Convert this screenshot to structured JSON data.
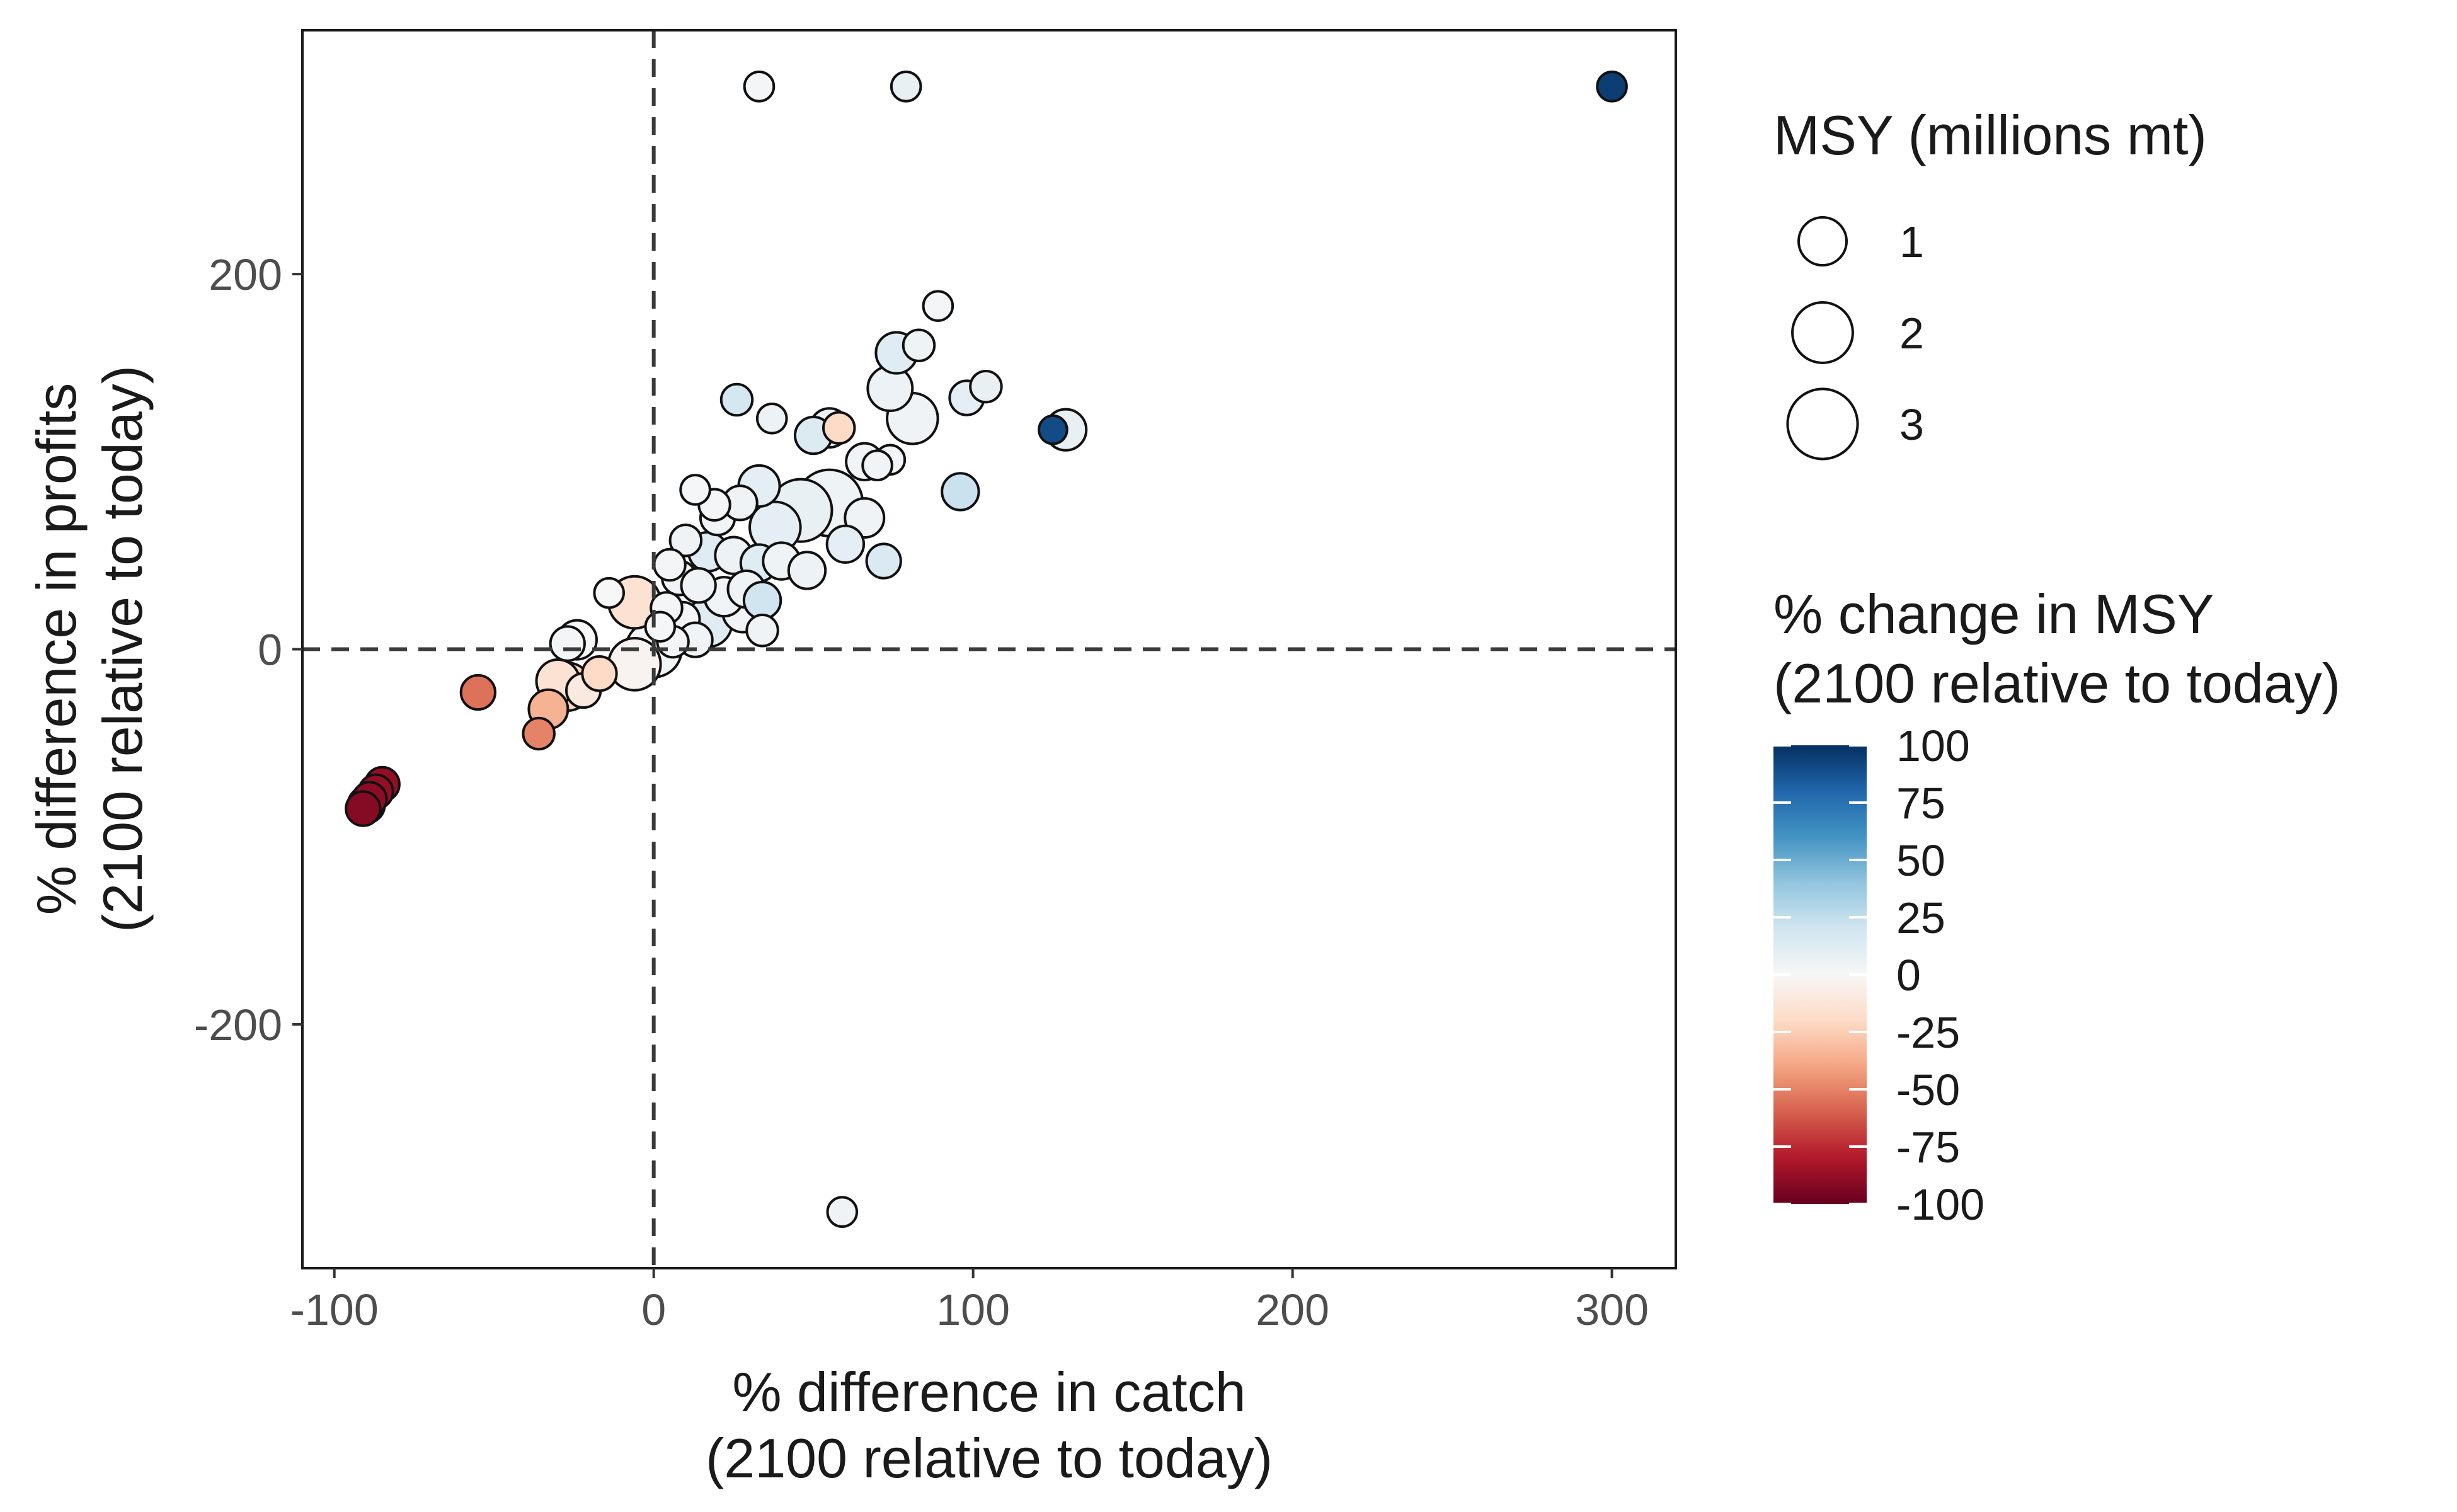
{
  "chart_data": {
    "type": "scatter",
    "xlabel": [
      "% difference in catch",
      "(2100 relative to today)"
    ],
    "ylabel": [
      "% difference in profits",
      "(2100 relative to today)"
    ],
    "xlim": [
      -110,
      320
    ],
    "ylim": [
      -330,
      330
    ],
    "x_ticks": [
      {
        "value": -100,
        "label": "-100"
      },
      {
        "value": 0,
        "label": "0"
      },
      {
        "value": 100,
        "label": "100"
      },
      {
        "value": 200,
        "label": "200"
      },
      {
        "value": 300,
        "label": "300"
      }
    ],
    "y_ticks": [
      {
        "value": -200,
        "label": "-200"
      },
      {
        "value": 0,
        "label": "0"
      },
      {
        "value": 200,
        "label": "200"
      }
    ],
    "grid": false,
    "reference_lines": {
      "x": 0,
      "y": 0,
      "style": "dashed"
    },
    "size_legend": {
      "title": "MSY (millions mt)",
      "entries": [
        {
          "value": 1,
          "label": "1"
        },
        {
          "value": 2,
          "label": "2"
        },
        {
          "value": 3,
          "label": "3"
        }
      ]
    },
    "color_legend": {
      "title": [
        "% change in MSY",
        "(2100 relative to today)"
      ],
      "range": [
        -100,
        100
      ],
      "ticks": [
        {
          "value": 100,
          "label": "100"
        },
        {
          "value": 75,
          "label": "75"
        },
        {
          "value": 50,
          "label": "50"
        },
        {
          "value": 25,
          "label": "25"
        },
        {
          "value": 0,
          "label": "0"
        },
        {
          "value": -25,
          "label": "-25"
        },
        {
          "value": -50,
          "label": "-50"
        },
        {
          "value": -75,
          "label": "-75"
        },
        {
          "value": -100,
          "label": "-100"
        }
      ],
      "palette": [
        "#67001f",
        "#b2182b",
        "#d6604d",
        "#f4a582",
        "#fddbc7",
        "#f7f7f7",
        "#d1e5f0",
        "#92c5de",
        "#4393c3",
        "#2166ac",
        "#053061"
      ]
    },
    "points": [
      {
        "x": 300,
        "y": 300,
        "msy": 0.15,
        "pct": 95
      },
      {
        "x": 33,
        "y": 300,
        "msy": 0.15,
        "pct": 2
      },
      {
        "x": 79,
        "y": 300,
        "msy": 0.15,
        "pct": 8
      },
      {
        "x": 59,
        "y": -300,
        "msy": 0.15,
        "pct": 4
      },
      {
        "x": 89,
        "y": 183,
        "msy": 0.15,
        "pct": 2
      },
      {
        "x": 76,
        "y": 158,
        "msy": 0.6,
        "pct": 12
      },
      {
        "x": 83,
        "y": 162,
        "msy": 0.2,
        "pct": 5
      },
      {
        "x": 74,
        "y": 139,
        "msy": 0.8,
        "pct": 6
      },
      {
        "x": 26,
        "y": 133,
        "msy": 0.2,
        "pct": 18
      },
      {
        "x": 37,
        "y": 123,
        "msy": 0.15,
        "pct": 6
      },
      {
        "x": 98,
        "y": 134,
        "msy": 0.3,
        "pct": 10
      },
      {
        "x": 104,
        "y": 140,
        "msy": 0.2,
        "pct": 8
      },
      {
        "x": 129,
        "y": 117,
        "msy": 0.6,
        "pct": 8
      },
      {
        "x": 125,
        "y": 117,
        "msy": 0.12,
        "pct": 90
      },
      {
        "x": 81,
        "y": 123,
        "msy": 1.2,
        "pct": 4
      },
      {
        "x": 50,
        "y": 114,
        "msy": 0.4,
        "pct": 14
      },
      {
        "x": 55,
        "y": 118,
        "msy": 0.5,
        "pct": 6
      },
      {
        "x": 58,
        "y": 118,
        "msy": 0.2,
        "pct": -20
      },
      {
        "x": 96,
        "y": 84,
        "msy": 0.4,
        "pct": 22
      },
      {
        "x": 66,
        "y": 100,
        "msy": 0.4,
        "pct": 3
      },
      {
        "x": 74,
        "y": 101,
        "msy": 0.15,
        "pct": 2
      },
      {
        "x": 70,
        "y": 98,
        "msy": 0.15,
        "pct": 3
      },
      {
        "x": 33,
        "y": 87,
        "msy": 0.6,
        "pct": 10
      },
      {
        "x": 55,
        "y": 78,
        "msy": 2.6,
        "pct": 5
      },
      {
        "x": 46,
        "y": 74,
        "msy": 2.2,
        "pct": 8
      },
      {
        "x": 38,
        "y": 65,
        "msy": 1.2,
        "pct": 10
      },
      {
        "x": 66,
        "y": 70,
        "msy": 0.5,
        "pct": 4
      },
      {
        "x": 60,
        "y": 56,
        "msy": 0.4,
        "pct": 10
      },
      {
        "x": 72,
        "y": 47,
        "msy": 0.3,
        "pct": 15
      },
      {
        "x": 20,
        "y": 70,
        "msy": 0.3,
        "pct": 3
      },
      {
        "x": 13,
        "y": 85,
        "msy": 0.15,
        "pct": 1
      },
      {
        "x": 19,
        "y": 77,
        "msy": 0.2,
        "pct": 2
      },
      {
        "x": 27,
        "y": 78,
        "msy": 0.3,
        "pct": 4
      },
      {
        "x": 10,
        "y": 58,
        "msy": 0.2,
        "pct": 4
      },
      {
        "x": 17,
        "y": 52,
        "msy": 0.5,
        "pct": 12
      },
      {
        "x": 25,
        "y": 50,
        "msy": 0.4,
        "pct": 6
      },
      {
        "x": 33,
        "y": 46,
        "msy": 0.4,
        "pct": 12
      },
      {
        "x": 40,
        "y": 47,
        "msy": 0.4,
        "pct": 5
      },
      {
        "x": 48,
        "y": 42,
        "msy": 0.4,
        "pct": 6
      },
      {
        "x": 5,
        "y": 45,
        "msy": 0.2,
        "pct": 2
      },
      {
        "x": 8,
        "y": 38,
        "msy": 0.3,
        "pct": 3
      },
      {
        "x": 14,
        "y": 34,
        "msy": 0.3,
        "pct": 4
      },
      {
        "x": 22,
        "y": 28,
        "msy": 0.5,
        "pct": 3
      },
      {
        "x": 29,
        "y": 32,
        "msy": 0.4,
        "pct": 4
      },
      {
        "x": 34,
        "y": 26,
        "msy": 0.4,
        "pct": 20
      },
      {
        "x": 28,
        "y": 20,
        "msy": 0.6,
        "pct": 3
      },
      {
        "x": 17,
        "y": 14,
        "msy": 1.0,
        "pct": 12
      },
      {
        "x": 9,
        "y": 16,
        "msy": 0.3,
        "pct": 2
      },
      {
        "x": 4,
        "y": 22,
        "msy": 0.2,
        "pct": 2
      },
      {
        "x": 34,
        "y": 10,
        "msy": 0.2,
        "pct": 4
      },
      {
        "x": 13,
        "y": 5,
        "msy": 0.3,
        "pct": 3
      },
      {
        "x": 6,
        "y": 4,
        "msy": 0.2,
        "pct": 2
      },
      {
        "x": 2,
        "y": 12,
        "msy": 0.15,
        "pct": 1
      },
      {
        "x": 0,
        "y": 0,
        "msy": 1.6,
        "pct": 2
      },
      {
        "x": -6,
        "y": 25,
        "msy": 1.3,
        "pct": -15
      },
      {
        "x": -6,
        "y": -8,
        "msy": 1.3,
        "pct": -3
      },
      {
        "x": -14,
        "y": 30,
        "msy": 0.15,
        "pct": 0
      },
      {
        "x": -24,
        "y": 5,
        "msy": 0.5,
        "pct": 0
      },
      {
        "x": -27,
        "y": 3,
        "msy": 0.3,
        "pct": 2
      },
      {
        "x": -27,
        "y": -20,
        "msy": 1.0,
        "pct": -22
      },
      {
        "x": -30,
        "y": -17,
        "msy": 0.7,
        "pct": -15
      },
      {
        "x": -22,
        "y": -22,
        "msy": 0.3,
        "pct": -10
      },
      {
        "x": -17,
        "y": -13,
        "msy": 0.3,
        "pct": -20
      },
      {
        "x": -33,
        "y": -32,
        "msy": 0.5,
        "pct": -35
      },
      {
        "x": -36,
        "y": -45,
        "msy": 0.2,
        "pct": -50
      },
      {
        "x": -55,
        "y": -23,
        "msy": 0.3,
        "pct": -55
      },
      {
        "x": -85,
        "y": -72,
        "msy": 0.3,
        "pct": -88
      },
      {
        "x": -87,
        "y": -76,
        "msy": 0.3,
        "pct": -88
      },
      {
        "x": -89,
        "y": -80,
        "msy": 0.3,
        "pct": -90
      },
      {
        "x": -90,
        "y": -83,
        "msy": 0.4,
        "pct": -90
      },
      {
        "x": -91,
        "y": -85,
        "msy": 0.3,
        "pct": -92
      }
    ]
  }
}
